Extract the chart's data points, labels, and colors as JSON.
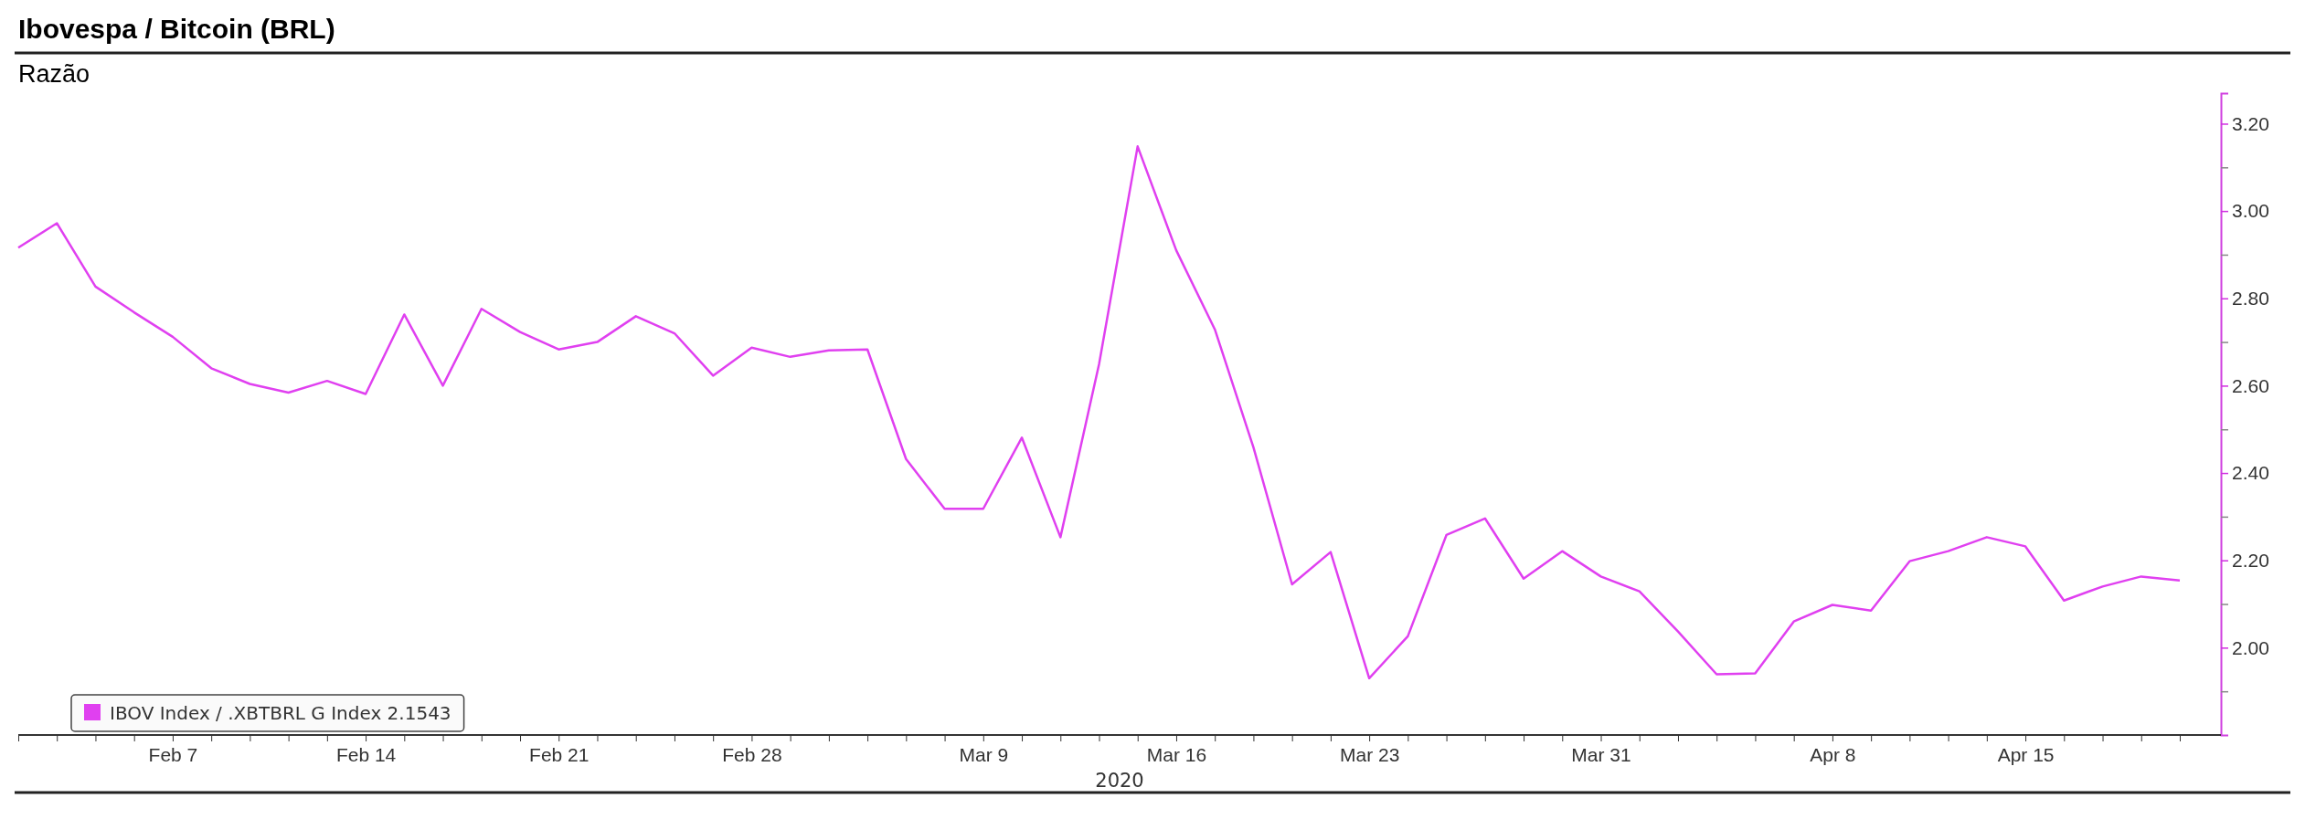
{
  "chart_data": {
    "type": "line",
    "title": "Ibovespa / Bitcoin (BRL)",
    "subtitle": "Razão",
    "xlabel": "2020",
    "categories": [
      null,
      null,
      null,
      null,
      "Feb 7",
      null,
      null,
      null,
      null,
      "Feb 14",
      null,
      null,
      null,
      null,
      "Feb 21",
      null,
      null,
      null,
      null,
      "Feb 28",
      null,
      null,
      null,
      null,
      null,
      "Mar 9",
      null,
      null,
      null,
      null,
      "Mar 16",
      null,
      null,
      null,
      null,
      "Mar 23",
      null,
      null,
      null,
      null,
      null,
      "Mar 31",
      null,
      null,
      null,
      null,
      null,
      "Apr 8",
      null,
      null,
      null,
      null,
      "Apr 15",
      null,
      null,
      null,
      null
    ],
    "series": [
      {
        "name": "IBOV Index / .XBTBRL G Index 2.1543",
        "color": "#e040f0",
        "values": [
          2.916,
          2.972,
          2.827,
          2.768,
          2.712,
          2.64,
          2.604,
          2.584,
          2.611,
          2.581,
          2.763,
          2.6,
          2.776,
          2.723,
          2.683,
          2.7,
          2.759,
          2.72,
          2.623,
          2.687,
          2.666,
          2.681,
          2.683,
          2.432,
          2.318,
          2.318,
          2.481,
          2.253,
          2.649,
          3.148,
          2.91,
          2.729,
          2.459,
          2.145,
          2.219,
          1.93,
          2.026,
          2.258,
          2.296,
          2.158,
          2.221,
          2.163,
          2.129,
          2.037,
          1.939,
          1.941,
          2.06,
          2.098,
          2.085,
          2.198,
          2.221,
          2.253,
          2.232,
          2.108,
          2.14,
          2.163,
          2.154
        ]
      }
    ],
    "ylim": [
      1.8,
      3.27
    ],
    "yticks": [
      {
        "value": 1.9,
        "label": null
      },
      {
        "value": 2,
        "label": "2.00"
      },
      {
        "value": 2.1,
        "label": null
      },
      {
        "value": 2.2,
        "label": "2.20"
      },
      {
        "value": 2.3,
        "label": null
      },
      {
        "value": 2.4,
        "label": "2.40"
      },
      {
        "value": 2.5,
        "label": null
      },
      {
        "value": 2.6,
        "label": "2.60"
      },
      {
        "value": 2.7,
        "label": null
      },
      {
        "value": 2.8,
        "label": "2.80"
      },
      {
        "value": 2.9,
        "label": null
      },
      {
        "value": 3,
        "label": "3.00"
      },
      {
        "value": 3.1,
        "label": null
      },
      {
        "value": 3.2,
        "label": "3.20"
      }
    ],
    "grid": false,
    "legend": "bottom left",
    "line_style": "solid",
    "marker": "none"
  }
}
